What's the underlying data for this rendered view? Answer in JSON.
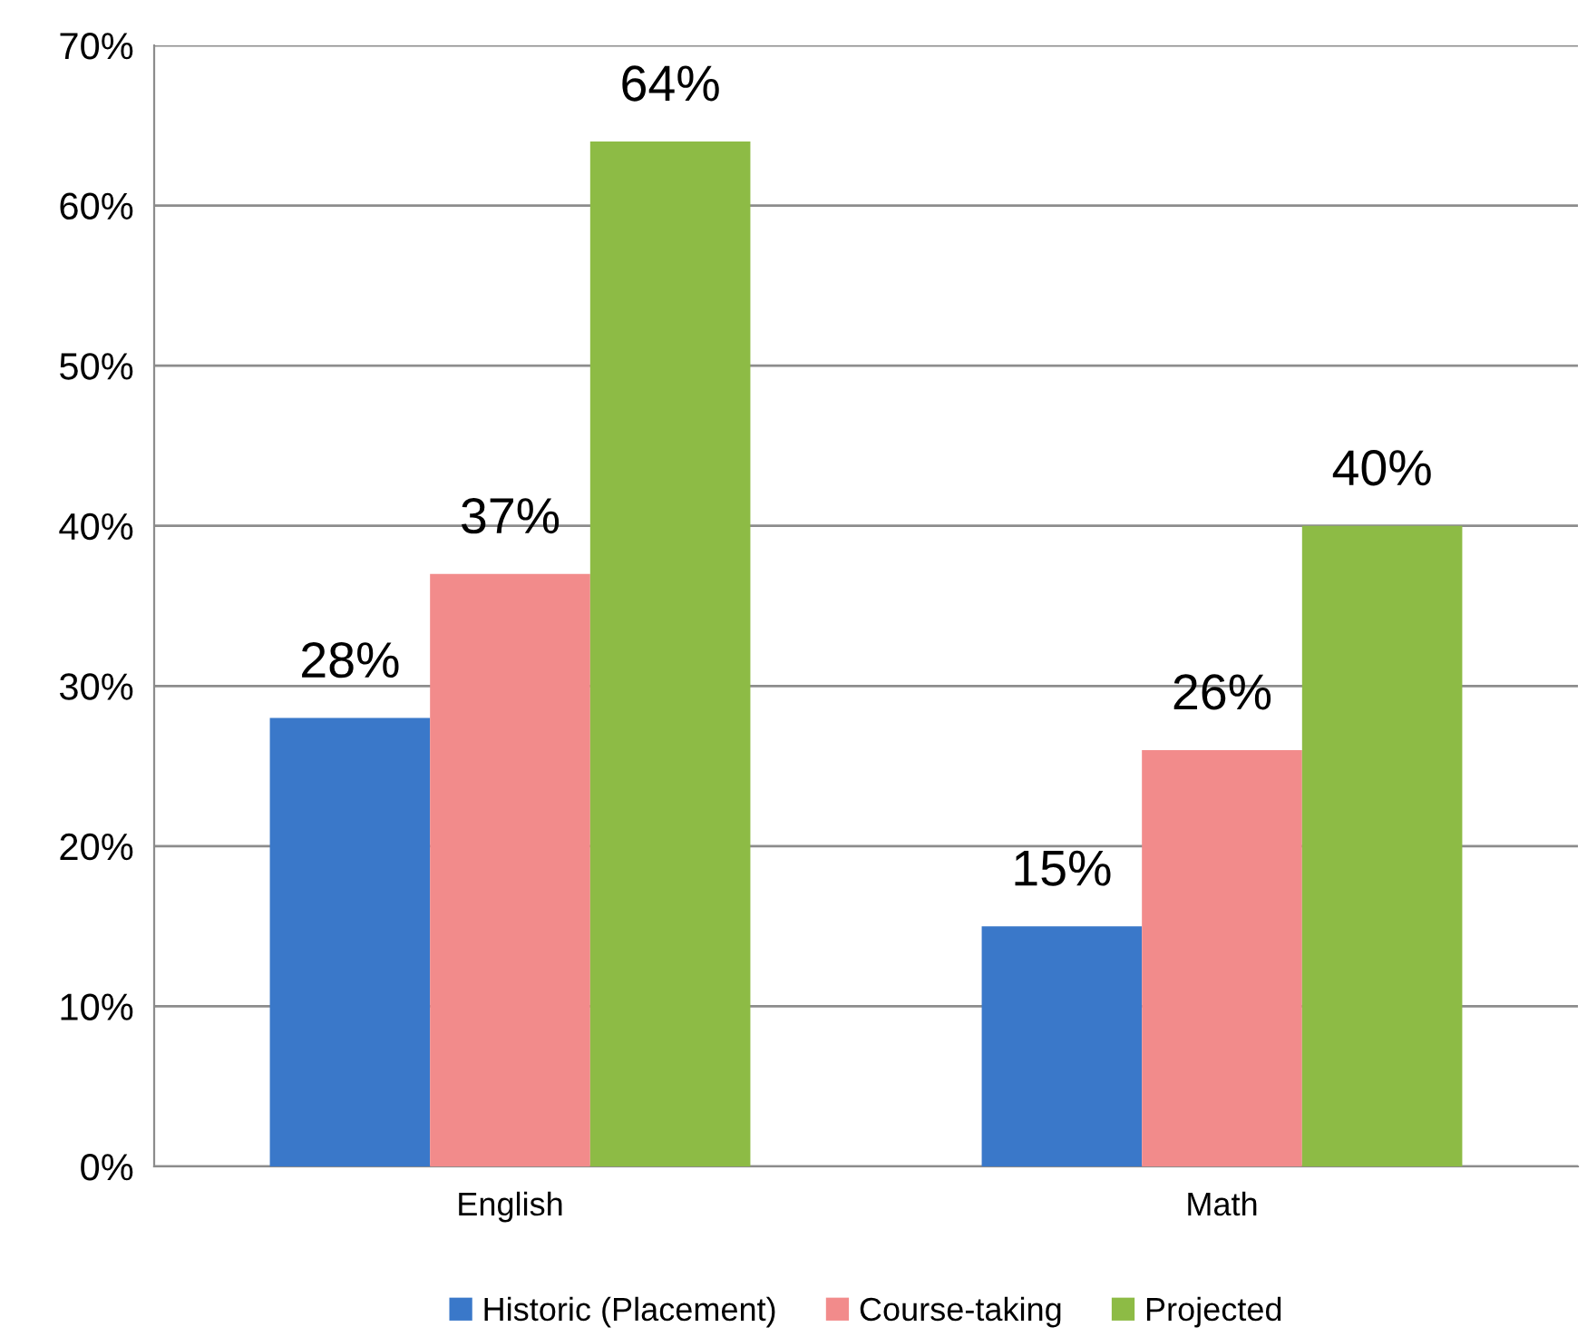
{
  "chart_data": {
    "type": "bar",
    "categories": [
      "English",
      "Math"
    ],
    "series": [
      {
        "name": "Historic (Placement)",
        "color": "#3a78c9",
        "values": [
          28,
          15
        ],
        "value_labels": [
          "28%",
          "15%"
        ]
      },
      {
        "name": "Course-taking",
        "color": "#f28b8b",
        "values": [
          37,
          26
        ],
        "value_labels": [
          "37%",
          "26%"
        ]
      },
      {
        "name": "Projected",
        "color": "#8dbb45",
        "values": [
          64,
          40
        ],
        "value_labels": [
          "64%",
          "40%"
        ]
      }
    ],
    "ylim": [
      0,
      70
    ],
    "yticks": [
      {
        "value": 0,
        "label": "0%"
      },
      {
        "value": 10,
        "label": "10%"
      },
      {
        "value": 20,
        "label": "20%"
      },
      {
        "value": 30,
        "label": "30%"
      },
      {
        "value": 40,
        "label": "40%"
      },
      {
        "value": 50,
        "label": "50%"
      },
      {
        "value": 60,
        "label": "60%"
      },
      {
        "value": 70,
        "label": "70%"
      }
    ],
    "grid": "y",
    "legend": "bottom"
  }
}
